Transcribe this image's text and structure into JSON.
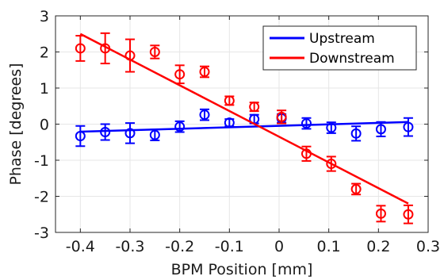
{
  "chart_data": {
    "type": "scatter",
    "title": "",
    "xlabel": "BPM Position [mm]",
    "ylabel": "Phase [degrees]",
    "xlim": [
      -0.45,
      0.3
    ],
    "ylim": [
      -3,
      3
    ],
    "xticks": [
      -0.4,
      -0.3,
      -0.2,
      -0.1,
      0,
      0.1,
      0.2,
      0.3
    ],
    "xtick_labels": [
      "-0.4",
      "-0.3",
      "-0.2",
      "-0.1",
      "0",
      "0.1",
      "0.2",
      "0.3"
    ],
    "yticks": [
      -3,
      -2,
      -1,
      0,
      1,
      2,
      3
    ],
    "ytick_labels": [
      "-3",
      "-2",
      "-1",
      "0",
      "1",
      "2",
      "3"
    ],
    "grid": true,
    "legend": {
      "position": "top-right"
    },
    "series": [
      {
        "name": "Upstream",
        "color": "#0000ff",
        "marker": "circle-open",
        "x": [
          -0.4,
          -0.35,
          -0.3,
          -0.25,
          -0.2,
          -0.15,
          -0.1,
          -0.05,
          0.005,
          0.055,
          0.105,
          0.155,
          0.205,
          0.26
        ],
        "y": [
          -0.33,
          -0.22,
          -0.25,
          -0.3,
          -0.07,
          0.26,
          0.04,
          0.14,
          0.16,
          0.02,
          -0.1,
          -0.26,
          -0.14,
          -0.08
        ],
        "yerr": [
          0.28,
          0.22,
          0.28,
          0.15,
          0.15,
          0.15,
          0.1,
          0.12,
          0.12,
          0.15,
          0.15,
          0.2,
          0.2,
          0.25
        ],
        "fit": {
          "x": [
            -0.4,
            0.26
          ],
          "y": [
            -0.21,
            0.06
          ]
        }
      },
      {
        "name": "Downstream",
        "color": "#ff0000",
        "marker": "circle-open",
        "x": [
          -0.4,
          -0.35,
          -0.3,
          -0.25,
          -0.2,
          -0.15,
          -0.1,
          -0.05,
          0.005,
          0.055,
          0.105,
          0.155,
          0.205,
          0.26
        ],
        "y": [
          2.1,
          2.1,
          1.9,
          2.0,
          1.38,
          1.45,
          0.65,
          0.48,
          0.2,
          -0.82,
          -1.1,
          -1.8,
          -2.48,
          -2.5
        ],
        "yerr": [
          0.35,
          0.42,
          0.45,
          0.18,
          0.25,
          0.15,
          0.12,
          0.12,
          0.18,
          0.2,
          0.2,
          0.15,
          0.22,
          0.25
        ],
        "fit": {
          "x": [
            -0.4,
            0.26
          ],
          "y": [
            2.5,
            -2.2
          ]
        }
      }
    ]
  }
}
